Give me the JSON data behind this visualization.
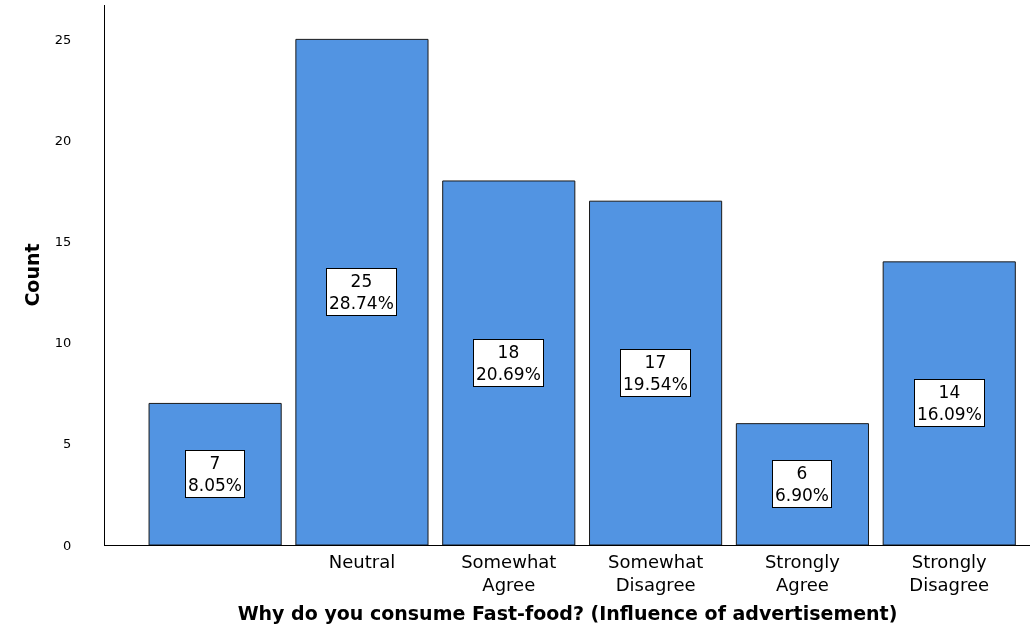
{
  "chart_data": {
    "type": "bar",
    "xlabel": "Why do you consume Fast-food? (Influence of advertisement)",
    "ylabel": "Count",
    "categories": [
      null,
      "Neutral",
      "Somewhat Agree",
      "Somewhat Disagree",
      "Strongly Agree",
      "Strongly Disagree"
    ],
    "values": [
      7,
      25,
      18,
      17,
      6,
      14
    ],
    "color": "#5294e2",
    "value_labels": [
      "7\n8.05%",
      "25\n28.74%",
      "18\n20.69%",
      "17\n19.54%",
      "6\n6.90%",
      "14\n16.09%"
    ],
    "ylim": [
      0,
      26.7
    ],
    "yticks": [
      0,
      5,
      10,
      15,
      20,
      25
    ],
    "grid": false
  }
}
